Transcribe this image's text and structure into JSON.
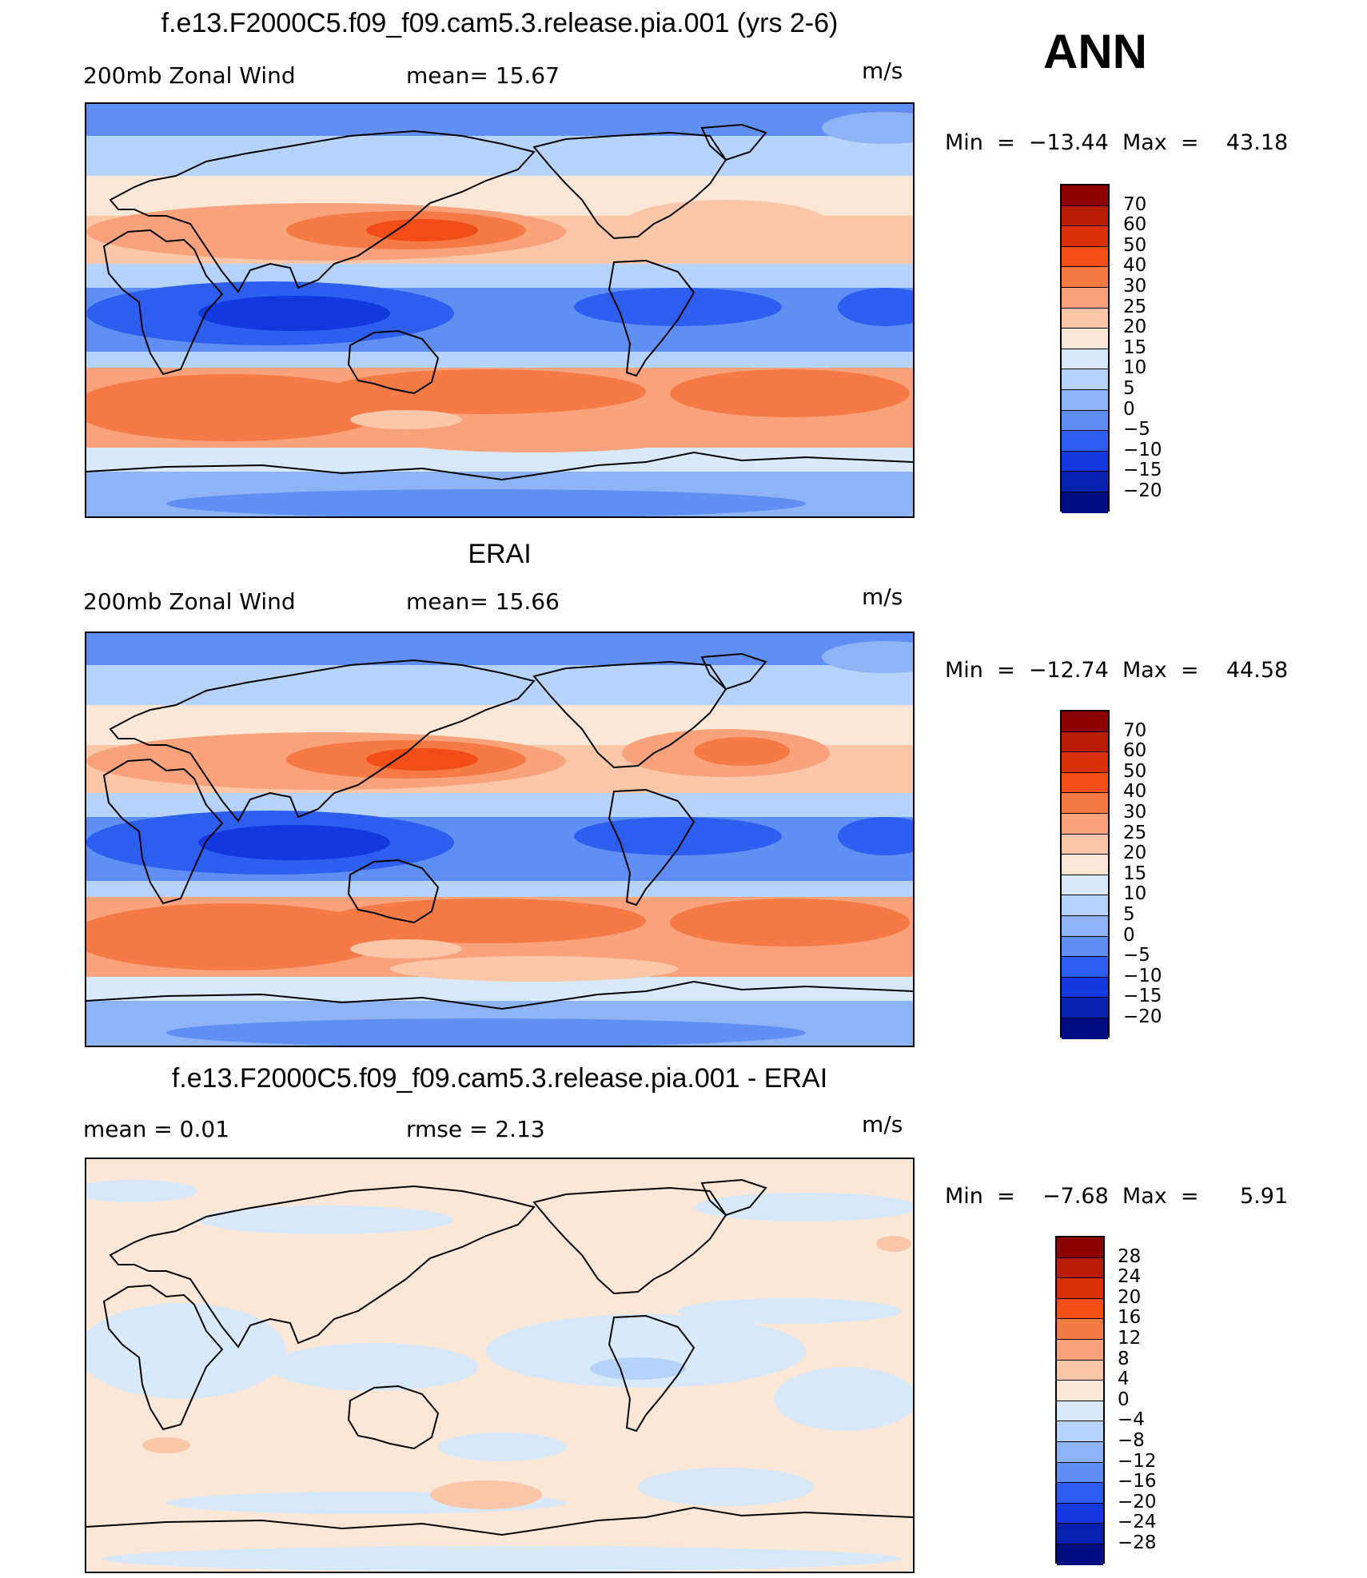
{
  "season": "ANN",
  "panels": [
    {
      "title": "f.e13.F2000C5.f09_f09.cam5.3.release.pia.001 (yrs 2-6)",
      "left_label": "200mb  Zonal Wind",
      "center_label": "mean=   15.67",
      "units": "m/s",
      "minmax": "Min  =  −13.44  Max  =    43.18",
      "map_name": "model-wind-map"
    },
    {
      "title": "ERAI",
      "left_label": "200mb  Zonal Wind",
      "center_label": "mean=   15.66",
      "units": "m/s",
      "minmax": "Min  =  −12.74  Max  =    44.58",
      "map_name": "obs-wind-map"
    },
    {
      "title": "f.e13.F2000C5.f09_f09.cam5.3.release.pia.001 - ERAI",
      "left_label": "mean  =     0.01",
      "center_label": "rmse  =     2.13",
      "units": "m/s",
      "minmax": "Min  =    −7.68  Max  =      5.91",
      "map_name": "difference-wind-map"
    }
  ],
  "colorbars": {
    "wind": {
      "labels": [
        "70",
        "60",
        "50",
        "40",
        "30",
        "25",
        "20",
        "15",
        "10",
        "5",
        "0",
        "−5",
        "−10",
        "−15",
        "−20"
      ],
      "colors": [
        "#8b0000",
        "#b81c05",
        "#d93007",
        "#f24d17",
        "#f57a45",
        "#f9a27c",
        "#fcc7a8",
        "#fde7d6",
        "#d7e9fb",
        "#b6d3fb",
        "#8fb4f6",
        "#5f8ff2",
        "#2e5ef0",
        "#1338e0",
        "#0820b0",
        "#000d80"
      ]
    },
    "diff": {
      "labels": [
        "28",
        "24",
        "20",
        "16",
        "12",
        "8",
        "4",
        "0",
        "−4",
        "−8",
        "−12",
        "−16",
        "−20",
        "−24",
        "−28"
      ],
      "colors": [
        "#8b0000",
        "#b81c05",
        "#d93007",
        "#f24d17",
        "#f57a45",
        "#f9a27c",
        "#fcc7a8",
        "#fde7d6",
        "#d7e9fb",
        "#b6d3fb",
        "#8fb4f6",
        "#5f8ff2",
        "#2e5ef0",
        "#1338e0",
        "#0820b0",
        "#000d80"
      ]
    }
  }
}
